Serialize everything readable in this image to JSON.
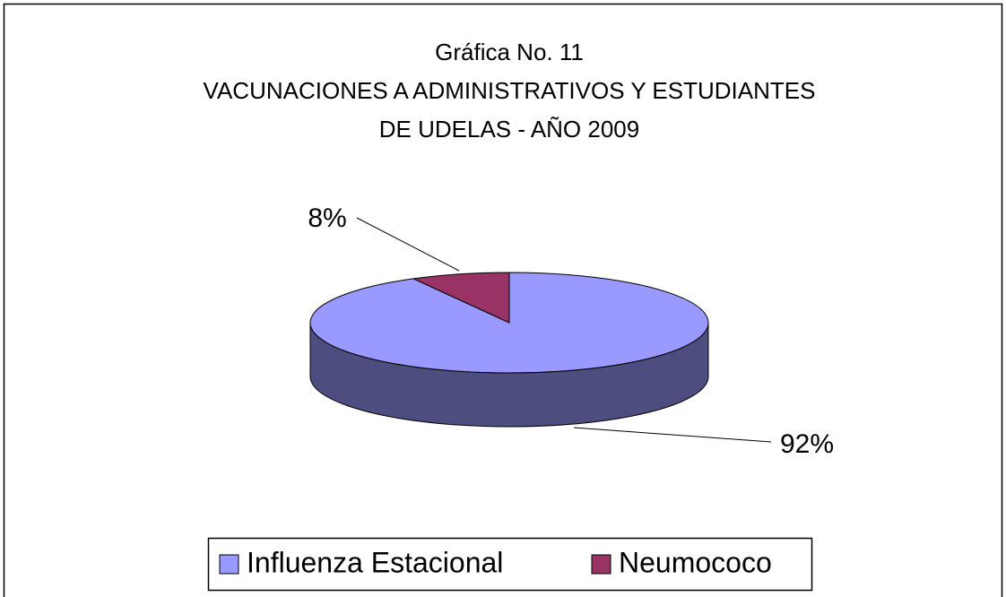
{
  "chart_data": {
    "type": "pie",
    "title": [
      "Gráfica No. 11",
      "VACUNACIONES A ADMINISTRATIVOS Y ESTUDIANTES",
      "DE UDELAS - AÑO 2009"
    ],
    "categories": [
      "Influenza Estacional",
      "Neumococo"
    ],
    "values": [
      92,
      8
    ],
    "value_labels": [
      "92%",
      "8%"
    ],
    "colors": [
      "#9999ff",
      "#993366"
    ],
    "legend": "bottom"
  }
}
